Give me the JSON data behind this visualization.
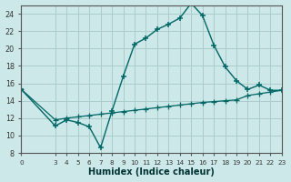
{
  "xlabel": "Humidex (Indice chaleur)",
  "background_color": "#cce8e8",
  "grid_color": "#aacccc",
  "line_color": "#006666",
  "xlim": [
    0,
    23
  ],
  "ylim": [
    8,
    25
  ],
  "xticks": [
    0,
    3,
    4,
    5,
    6,
    7,
    8,
    9,
    10,
    11,
    12,
    13,
    14,
    15,
    16,
    17,
    18,
    19,
    20,
    21,
    22,
    23
  ],
  "yticks": [
    8,
    10,
    12,
    14,
    16,
    18,
    20,
    22,
    24
  ],
  "curve1_x": [
    0,
    3,
    4,
    5,
    6,
    7,
    8,
    9,
    10,
    11,
    12,
    13,
    14,
    15,
    16,
    17,
    18,
    19,
    20,
    21,
    22,
    23
  ],
  "curve1_y": [
    15.3,
    11.1,
    11.8,
    11.5,
    11.0,
    8.6,
    12.8,
    16.8,
    20.5,
    21.2,
    22.2,
    22.8,
    23.5,
    25.2,
    23.8,
    20.4,
    17.9,
    16.3,
    15.3,
    15.8,
    15.2,
    15.2
  ],
  "curve2_x": [
    0,
    3,
    4,
    5,
    6,
    7,
    8,
    9,
    10,
    11,
    12,
    13,
    14,
    15,
    16,
    17,
    18,
    19,
    20,
    21,
    22,
    23
  ],
  "curve2_y": [
    15.3,
    11.8,
    12.0,
    12.15,
    12.3,
    12.45,
    12.6,
    12.75,
    12.9,
    13.05,
    13.2,
    13.35,
    13.5,
    13.65,
    13.8,
    13.9,
    14.0,
    14.1,
    14.6,
    14.8,
    15.0,
    15.2
  ]
}
